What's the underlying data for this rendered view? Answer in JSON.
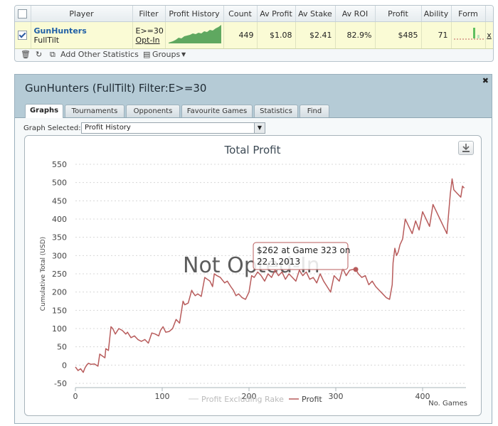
{
  "stats": {
    "headers": [
      "Player",
      "Filter",
      "Profit History",
      "Count",
      "Av Profit",
      "Av Stake",
      "Av ROI",
      "Profit",
      "Ability",
      "Form"
    ],
    "row": {
      "player_name": "GunHunters",
      "site": "FullTilt",
      "filter_line1": "E>=30",
      "filter_line2": "Opt-In",
      "count": "449",
      "av_profit": "$1.08",
      "av_stake": "$2.41",
      "av_roi": "82.9%",
      "profit": "$485",
      "ability": "71",
      "remove": "x"
    },
    "footer": {
      "add_stats": "Add Other Statistics",
      "groups": "Groups"
    }
  },
  "window": {
    "title": "GunHunters (FullTilt) Filter:E>=30",
    "tabs": [
      "Graphs",
      "Tournaments",
      "Opponents",
      "Favourite Games",
      "Statistics",
      "Find"
    ],
    "active_tab": "Graphs",
    "graph_selected_label": "Graph Selected:",
    "graph_selected_value": "Profit History"
  },
  "chart_data": {
    "type": "line",
    "title": "Total Profit",
    "ylabel": "Cumulative Total (USD)",
    "xlabel": "No. Games",
    "xlim": [
      0,
      450
    ],
    "ylim": [
      -50,
      550
    ],
    "xticks": [
      0,
      100,
      200,
      300,
      400
    ],
    "yticks": [
      -50,
      0,
      50,
      100,
      150,
      200,
      250,
      300,
      350,
      400,
      450,
      500,
      550
    ],
    "grid": true,
    "legend_position": "bottom-center",
    "watermark": "Not Opted-In",
    "tooltip": {
      "line1": "$262 at Game 323 on",
      "line2": "22.1.2013"
    },
    "highlight": {
      "x": 323,
      "y": 262
    },
    "series": [
      {
        "name": "Profit Excluding Rake",
        "color": "#dddddd",
        "x": [],
        "y": []
      },
      {
        "name": "Profit",
        "color": "#b85c5c",
        "x": [
          0,
          3,
          6,
          9,
          11,
          13,
          15,
          18,
          22,
          26,
          28,
          31,
          34,
          35,
          38,
          41,
          43,
          44,
          46,
          50,
          54,
          58,
          60,
          64,
          68,
          72,
          76,
          80,
          84,
          88,
          92,
          96,
          98,
          101,
          104,
          108,
          112,
          116,
          120,
          124,
          126,
          130,
          134,
          135,
          138,
          141,
          145,
          149,
          152,
          155,
          158,
          160,
          163,
          167,
          172,
          175,
          179,
          182,
          185,
          188,
          192,
          196,
          200,
          203,
          206,
          210,
          214,
          218,
          222,
          226,
          230,
          234,
          238,
          242,
          246,
          250,
          254,
          258,
          262,
          266,
          270,
          274,
          278,
          282,
          286,
          290,
          294,
          298,
          300,
          304,
          308,
          312,
          316,
          320,
          323,
          326,
          330,
          334,
          338,
          342,
          346,
          350,
          354,
          358,
          362,
          365,
          366,
          368,
          370,
          372,
          374,
          377,
          380,
          384,
          388,
          392,
          396,
          400,
          404,
          408,
          412,
          416,
          420,
          424,
          428,
          432,
          434,
          436,
          440,
          444,
          446,
          448
        ],
        "y": [
          -5,
          -15,
          -10,
          -20,
          -8,
          0,
          5,
          2,
          3,
          -3,
          30,
          25,
          20,
          45,
          40,
          105,
          100,
          95,
          85,
          100,
          95,
          85,
          90,
          75,
          80,
          70,
          65,
          70,
          60,
          88,
          85,
          80,
          95,
          105,
          90,
          92,
          100,
          125,
          115,
          175,
          165,
          170,
          205,
          200,
          190,
          195,
          188,
          240,
          235,
          230,
          215,
          250,
          245,
          240,
          225,
          230,
          215,
          205,
          190,
          195,
          185,
          180,
          200,
          245,
          240,
          255,
          245,
          230,
          250,
          240,
          260,
          245,
          255,
          235,
          250,
          240,
          230,
          260,
          245,
          255,
          235,
          240,
          225,
          250,
          230,
          215,
          200,
          245,
          240,
          230,
          265,
          245,
          260,
          262,
          262,
          250,
          240,
          245,
          220,
          230,
          215,
          205,
          195,
          185,
          180,
          220,
          280,
          320,
          300,
          310,
          330,
          345,
          400,
          380,
          360,
          395,
          370,
          420,
          400,
          380,
          440,
          420,
          400,
          380,
          360,
          470,
          510,
          480,
          470,
          460,
          490,
          485
        ]
      }
    ]
  }
}
